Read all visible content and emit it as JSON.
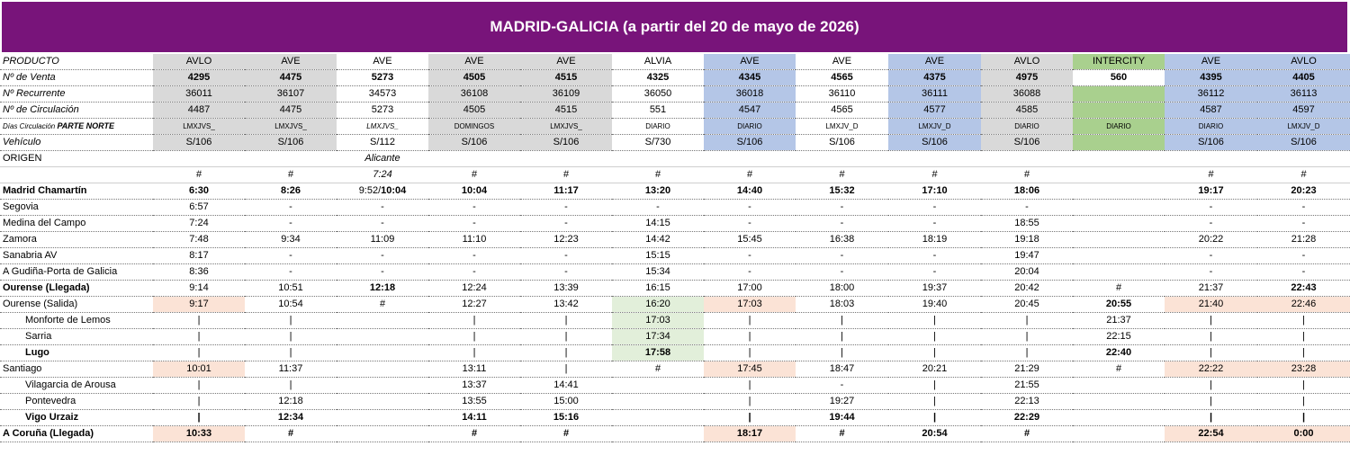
{
  "title": "MADRID-GALICIA (a partir del 20 de mayo de 2026)",
  "header_rows": [
    {
      "label": "PRODUCTO",
      "cells": [
        "AVLO",
        "AVE",
        "AVE",
        "AVE",
        "AVE",
        "ALVIA",
        "AVE",
        "AVE",
        "AVE",
        "AVLO",
        "INTERCITY",
        "AVE",
        "AVLO"
      ]
    },
    {
      "label": "Nº de Venta",
      "cells": [
        "4295",
        "4475",
        "5273",
        "4505",
        "4515",
        "4325",
        "4345",
        "4565",
        "4375",
        "4975",
        "560",
        "4395",
        "4405"
      ]
    },
    {
      "label": "Nº Recurrente",
      "cells": [
        "36011",
        "36107",
        "34573",
        "36108",
        "36109",
        "36050",
        "36018",
        "36110",
        "36111",
        "36088",
        "",
        "36112",
        "36113"
      ]
    },
    {
      "label": "Nº de Circulación",
      "cells": [
        "4487",
        "4475",
        "5273",
        "4505",
        "4515",
        "551",
        "4547",
        "4565",
        "4577",
        "4585",
        "",
        "4587",
        "4597"
      ]
    },
    {
      "label": "Días Circulación",
      "label_extra": "PARTE NORTE",
      "cells": [
        "LMXJVS_",
        "LMXJVS_",
        "LMXJVS_",
        "DOMINGOS",
        "LMXJVS_",
        "DIARIO",
        "DIARIO",
        "LMXJV_D",
        "LMXJV_D",
        "DIARIO",
        "DIARIO",
        "DIARIO",
        "LMXJV_D"
      ]
    },
    {
      "label": "Vehículo",
      "cells": [
        "S/106",
        "S/106",
        "S/112",
        "S/106",
        "S/106",
        "S/730",
        "S/106",
        "S/106",
        "S/106",
        "S/106",
        "",
        "S/106",
        "S/106"
      ]
    }
  ],
  "origin_rows": [
    {
      "label": "ORIGEN",
      "cells": [
        "",
        "",
        "Alicante",
        "",
        "",
        "",
        "",
        "",
        "",
        "",
        "",
        "",
        ""
      ]
    },
    {
      "label": "",
      "cells": [
        "#",
        "#",
        "7:24",
        "#",
        "#",
        "#",
        "#",
        "#",
        "#",
        "#",
        "",
        "#",
        "#"
      ]
    }
  ],
  "stations": [
    {
      "name": "Madrid Chamartín",
      "cells": [
        "6:30",
        "8:26",
        "9:52/10:04",
        "10:04",
        "11:17",
        "13:20",
        "14:40",
        "15:32",
        "17:10",
        "18:06",
        "",
        "19:17",
        "20:23"
      ]
    },
    {
      "name": "Segovia",
      "cells": [
        "6:57",
        "-",
        "-",
        "-",
        "-",
        "-",
        "-",
        "-",
        "-",
        "-",
        "",
        "-",
        "-"
      ]
    },
    {
      "name": "Medina del Campo",
      "cells": [
        "7:24",
        "-",
        "-",
        "-",
        "-",
        "14:15",
        "-",
        "-",
        "-",
        "18:55",
        "",
        "-",
        "-"
      ]
    },
    {
      "name": "Zamora",
      "cells": [
        "7:48",
        "9:34",
        "11:09",
        "11:10",
        "12:23",
        "14:42",
        "15:45",
        "16:38",
        "18:19",
        "19:18",
        "",
        "20:22",
        "21:28"
      ]
    },
    {
      "name": "Sanabria AV",
      "cells": [
        "8:17",
        "-",
        "-",
        "-",
        "-",
        "15:15",
        "-",
        "-",
        "-",
        "19:47",
        "",
        "-",
        "-"
      ]
    },
    {
      "name": "A Gudiña-Porta de Galicia",
      "cells": [
        "8:36",
        "-",
        "-",
        "-",
        "-",
        "15:34",
        "-",
        "-",
        "-",
        "20:04",
        "",
        "-",
        "-"
      ]
    },
    {
      "name": "Ourense (Llegada)",
      "cells": [
        "9:14",
        "10:51",
        "12:18",
        "12:24",
        "13:39",
        "16:15",
        "17:00",
        "18:00",
        "19:37",
        "20:42",
        "#",
        "21:37",
        "22:43"
      ]
    },
    {
      "name": "Ourense (Salida)",
      "cells": [
        "9:17",
        "10:54",
        "#",
        "12:27",
        "13:42",
        "16:20",
        "17:03",
        "18:03",
        "19:40",
        "20:45",
        "20:55",
        "21:40",
        "22:46"
      ]
    },
    {
      "name": "Monforte de Lemos",
      "cells": [
        "|",
        "|",
        "",
        "|",
        "|",
        "17:03",
        "|",
        "|",
        "|",
        "|",
        "21:37",
        "|",
        "|"
      ]
    },
    {
      "name": "Sarria",
      "cells": [
        "|",
        "|",
        "",
        "|",
        "|",
        "17:34",
        "|",
        "|",
        "|",
        "|",
        "22:15",
        "|",
        "|"
      ]
    },
    {
      "name": "Lugo",
      "cells": [
        "|",
        "|",
        "",
        "|",
        "|",
        "17:58",
        "|",
        "|",
        "|",
        "|",
        "22:40",
        "|",
        "|"
      ]
    },
    {
      "name": "Santiago",
      "cells": [
        "10:01",
        "11:37",
        "",
        "13:11",
        "|",
        "#",
        "17:45",
        "18:47",
        "20:21",
        "21:29",
        "#",
        "22:22",
        "23:28"
      ]
    },
    {
      "name": "Vilagarcia de Arousa",
      "cells": [
        "|",
        "|",
        "",
        "13:37",
        "14:41",
        "",
        "|",
        "-",
        "|",
        "21:55",
        "",
        "|",
        "|"
      ]
    },
    {
      "name": "Pontevedra",
      "cells": [
        "|",
        "12:18",
        "",
        "13:55",
        "15:00",
        "",
        "|",
        "19:27",
        "|",
        "22:13",
        "",
        "|",
        "|"
      ]
    },
    {
      "name": "Vigo Urzaiz",
      "cells": [
        "|",
        "12:34",
        "",
        "14:11",
        "15:16",
        "",
        "|",
        "19:44",
        "|",
        "22:29",
        "",
        "|",
        "|"
      ]
    },
    {
      "name": "A Coruña (Llegada)",
      "cells": [
        "10:33",
        "#",
        "",
        "#",
        "#",
        "",
        "18:17",
        "#",
        "20:54",
        "#",
        "",
        "22:54",
        "0:00"
      ]
    }
  ],
  "colors": {
    "title_bg": "#78147a",
    "header_gray": "#d9d9d9",
    "header_blue": "#b4c6e7",
    "header_green": "#a9d08e",
    "highlight_peach": "#fbe3d6",
    "highlight_light_green": "#e2efda"
  }
}
